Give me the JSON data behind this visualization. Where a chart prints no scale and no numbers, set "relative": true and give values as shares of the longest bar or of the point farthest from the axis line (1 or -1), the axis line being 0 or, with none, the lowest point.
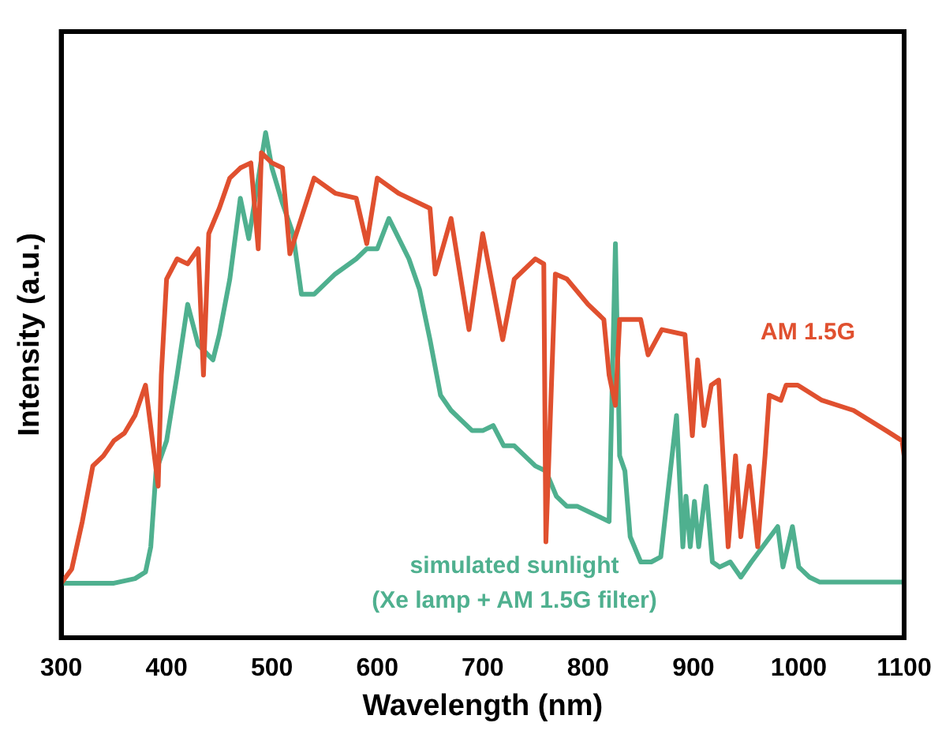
{
  "chart_data": {
    "type": "line",
    "xlabel": "Wavelength (nm)",
    "ylabel": "Intensity (a.u.)",
    "relative": true,
    "xlim": [
      300,
      1100
    ],
    "xticks": [
      300,
      400,
      500,
      600,
      700,
      800,
      900,
      {
        "value": 1000,
        "label": "1000"
      },
      {
        "value": 1100,
        "label": "1100"
      }
    ],
    "grid": false,
    "legend": false,
    "tick_labels": "x",
    "marker": "none",
    "line_style": "solid",
    "series": [
      {
        "name": "AM 1.5G",
        "color": "#e0502f",
        "x": [
          300,
          310,
          320,
          330,
          340,
          350,
          360,
          370,
          380,
          392,
          395,
          400,
          410,
          420,
          430,
          435,
          440,
          450,
          460,
          470,
          480,
          487,
          490,
          500,
          510,
          517,
          540,
          560,
          580,
          590,
          600,
          620,
          650,
          655,
          670,
          687,
          700,
          719,
          730,
          750,
          758,
          760,
          769,
          780,
          800,
          815,
          820,
          826,
          830,
          850,
          857,
          870,
          892,
          899,
          904,
          910,
          917,
          924,
          933,
          940,
          945,
          953,
          961,
          968,
          972,
          983,
          988,
          999,
          1022,
          1052,
          1083,
          1098,
          1100
        ],
        "values": [
          0.108,
          0.136,
          0.23,
          0.34,
          0.36,
          0.39,
          0.405,
          0.44,
          0.5,
          0.3,
          0.52,
          0.71,
          0.75,
          0.74,
          0.77,
          0.52,
          0.8,
          0.85,
          0.91,
          0.93,
          0.94,
          0.77,
          0.96,
          0.94,
          0.93,
          0.76,
          0.91,
          0.88,
          0.87,
          0.78,
          0.91,
          0.88,
          0.85,
          0.72,
          0.83,
          0.61,
          0.8,
          0.59,
          0.71,
          0.75,
          0.74,
          0.19,
          0.72,
          0.71,
          0.66,
          0.63,
          0.52,
          0.46,
          0.63,
          0.63,
          0.56,
          0.61,
          0.6,
          0.4,
          0.55,
          0.42,
          0.5,
          0.51,
          0.18,
          0.36,
          0.2,
          0.34,
          0.18,
          0.36,
          0.48,
          0.47,
          0.5,
          0.5,
          0.47,
          0.45,
          0.41,
          0.39,
          0.36
        ]
      },
      {
        "name": "simulated sunlight (Xe lamp + AM 1.5G filter)",
        "color": "#4fb08f",
        "x": [
          300,
          350,
          370,
          380,
          385,
          390,
          400,
          410,
          420,
          430,
          444,
          450,
          460,
          470,
          478,
          494,
          500,
          510,
          520,
          528,
          540,
          560,
          580,
          590,
          600,
          611,
          630,
          640,
          650,
          660,
          670,
          680,
          690,
          700,
          710,
          720,
          730,
          740,
          750,
          760,
          770,
          780,
          790,
          800,
          810,
          820,
          826,
          830,
          835,
          840,
          850,
          860,
          869,
          884,
          890,
          893,
          897,
          901,
          905,
          912,
          918,
          925,
          935,
          945,
          955,
          980,
          985,
          994,
          1000,
          1010,
          1020,
          1050,
          1100
        ],
        "values": [
          0.108,
          0.108,
          0.117,
          0.13,
          0.18,
          0.33,
          0.39,
          0.52,
          0.66,
          0.58,
          0.55,
          0.6,
          0.71,
          0.87,
          0.79,
          1,
          0.93,
          0.86,
          0.8,
          0.68,
          0.68,
          0.72,
          0.75,
          0.77,
          0.77,
          0.83,
          0.75,
          0.69,
          0.59,
          0.48,
          0.45,
          0.43,
          0.41,
          0.41,
          0.42,
          0.38,
          0.38,
          0.36,
          0.34,
          0.33,
          0.28,
          0.26,
          0.26,
          0.25,
          0.24,
          0.23,
          0.78,
          0.36,
          0.33,
          0.2,
          0.15,
          0.15,
          0.16,
          0.44,
          0.18,
          0.28,
          0.18,
          0.27,
          0.18,
          0.3,
          0.15,
          0.14,
          0.15,
          0.12,
          0.15,
          0.22,
          0.14,
          0.22,
          0.14,
          0.12,
          0.11,
          0.11,
          0.11
        ]
      }
    ]
  }
}
